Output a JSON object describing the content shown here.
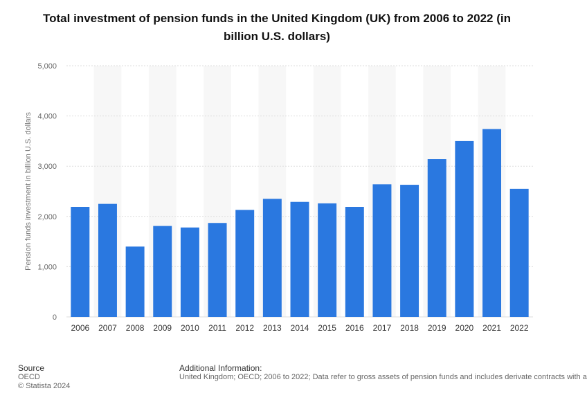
{
  "chart_data": {
    "type": "bar",
    "title": "Total investment of pension funds in the United Kingdom (UK) from 2006 to 2022 (in billion U.S. dollars)",
    "ylabel": "Pension funds investment in billion U.S. dollars",
    "xlabel": "",
    "categories": [
      "2006",
      "2007",
      "2008",
      "2009",
      "2010",
      "2011",
      "2012",
      "2013",
      "2014",
      "2015",
      "2016",
      "2017",
      "2018",
      "2019",
      "2020",
      "2021",
      "2022"
    ],
    "values": [
      2190,
      2250,
      1400,
      1810,
      1780,
      1870,
      2130,
      2350,
      2290,
      2260,
      2190,
      2640,
      2630,
      3140,
      3500,
      3740,
      2550
    ],
    "ylim": [
      0,
      5000
    ],
    "yticks": [
      "0",
      "1,000",
      "2,000",
      "3,000",
      "4,000",
      "5,000"
    ],
    "ytick_values": [
      0,
      1000,
      2000,
      3000,
      4000,
      5000
    ],
    "bar_color": "#2a78e0",
    "band_color": "#f7f7f7",
    "grid": true
  },
  "footer": {
    "source_heading": "Source",
    "source": "OECD",
    "copyright": "© Statista 2024",
    "additional_heading": "Additional Information:",
    "additional_text": "United Kingdom; OECD; 2006 to 2022; Data refer to gross assets of pension funds and includes derivate contracts with a"
  }
}
